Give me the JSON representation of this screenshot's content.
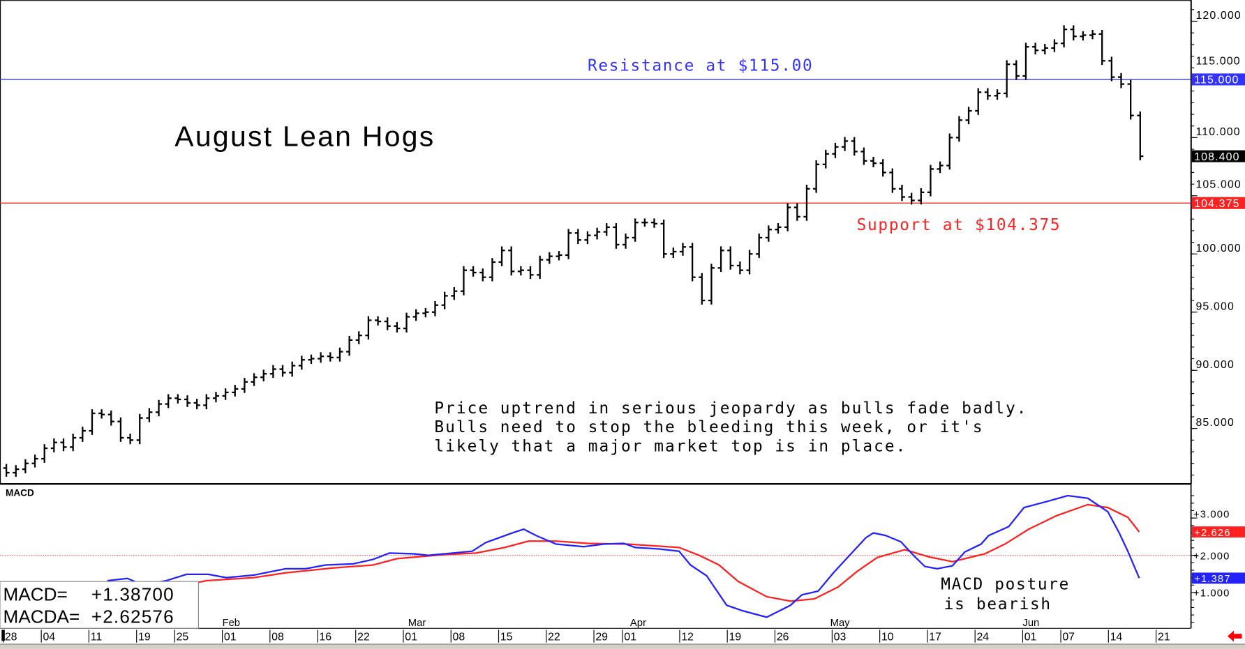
{
  "chart_data": {
    "type": "bar",
    "title": "August Lean Hogs",
    "price_axis": {
      "ylim": [
        80.5,
        121.5
      ],
      "ticks": [
        "120.000",
        "115.000",
        "110.000",
        "105.000",
        "100.000",
        "95.000",
        "90.000",
        "85.000"
      ],
      "tick_values": [
        120,
        115,
        110,
        105,
        100,
        95,
        90,
        85
      ]
    },
    "closes": [
      81.2,
      81.5,
      82.0,
      82.4,
      83.3,
      83.8,
      83.4,
      84.2,
      84.8,
      86.3,
      86.2,
      85.6,
      84.2,
      84.0,
      85.9,
      86.4,
      87.1,
      87.6,
      87.5,
      87.2,
      87.0,
      87.6,
      87.8,
      88.1,
      88.4,
      89.0,
      89.4,
      89.7,
      90.1,
      89.8,
      90.4,
      90.9,
      91.0,
      91.2,
      91.1,
      91.6,
      92.6,
      93.0,
      94.3,
      94.2,
      93.8,
      93.6,
      94.6,
      94.9,
      95.0,
      95.6,
      96.4,
      96.8,
      98.6,
      98.4,
      98.0,
      99.3,
      100.3,
      98.5,
      98.6,
      98.2,
      99.5,
      99.8,
      99.9,
      101.8,
      101.2,
      101.6,
      101.9,
      102.3,
      100.8,
      101.4,
      102.7,
      102.7,
      102.6,
      100.0,
      100.2,
      100.6,
      98.0,
      96.0,
      98.8,
      100.3,
      99.0,
      98.6,
      100.0,
      101.4,
      102.1,
      102.3,
      104.0,
      103.2,
      105.6,
      107.7,
      108.6,
      109.2,
      109.7,
      108.8,
      108.0,
      107.8,
      107.0,
      105.6,
      104.9,
      104.6,
      105.3,
      107.3,
      107.6,
      110.0,
      111.5,
      112.3,
      113.9,
      113.6,
      113.8,
      116.3,
      115.3,
      117.8,
      117.5,
      117.7,
      118.1,
      119.3,
      118.7,
      118.8,
      118.9,
      116.6,
      115.2,
      114.6,
      111.9,
      108.4
    ],
    "resistance": {
      "value": 115.0,
      "label": "Resistance at $115.00",
      "color": "#3333ff"
    },
    "support": {
      "value": 104.375,
      "label": "Support at $104.375",
      "color": "#ff2020"
    },
    "last_price": {
      "value": 108.4,
      "label": "108.400"
    },
    "resistance_tag": "115.000",
    "support_tag": "104.375",
    "annotation": [
      "Price uptrend in serious jeopardy as bulls fade badly.",
      "Bulls need to stop the bleeding this week, or it's",
      "likely that a major market top is in place."
    ],
    "macd": {
      "title": "MACD",
      "ylim": [
        0.0,
        3.9
      ],
      "ticks": [
        "+3.000",
        "+2.000",
        "+1.000"
      ],
      "tick_values": [
        3,
        2,
        1
      ],
      "zero_ref": 2.0,
      "macd_tag": "+1.387",
      "macda_tag": "+2.626",
      "readout": {
        "macd_label": "MACD=",
        "macd_value": "+1.38700",
        "macda_label": "MACDA=",
        "macda_value": "+2.62576"
      },
      "annotation": [
        "MACD posture",
        "is bearish"
      ],
      "macd_color": "#2222ff",
      "macda_color": "#ff2020",
      "macd_series": [
        [
          10.6,
          1.32
        ],
        [
          12.7,
          1.38
        ],
        [
          14.3,
          1.21
        ],
        [
          16.8,
          1.32
        ],
        [
          18.9,
          1.49
        ],
        [
          21.2,
          1.49
        ],
        [
          23.1,
          1.4
        ],
        [
          26,
          1.47
        ],
        [
          29.3,
          1.64
        ],
        [
          31.4,
          1.64
        ],
        [
          33.5,
          1.74
        ],
        [
          36.4,
          1.77
        ],
        [
          38.5,
          1.89
        ],
        [
          40.2,
          2.06
        ],
        [
          42.7,
          2.04
        ],
        [
          44.3,
          2.0
        ],
        [
          46,
          2.04
        ],
        [
          48.9,
          2.11
        ],
        [
          50.3,
          2.34
        ],
        [
          53.1,
          2.6
        ],
        [
          54.3,
          2.7
        ],
        [
          55.6,
          2.53
        ],
        [
          57.7,
          2.3
        ],
        [
          60.6,
          2.23
        ],
        [
          62.7,
          2.3
        ],
        [
          64.8,
          2.32
        ],
        [
          66,
          2.21
        ],
        [
          68.5,
          2.17
        ],
        [
          70.6,
          2.11
        ],
        [
          71.8,
          1.74
        ],
        [
          73.5,
          1.45
        ],
        [
          75.6,
          0.66
        ],
        [
          77.3,
          0.51
        ],
        [
          79.8,
          0.34
        ],
        [
          82.3,
          0.66
        ],
        [
          83.5,
          0.94
        ],
        [
          85.2,
          1.04
        ],
        [
          86.8,
          1.53
        ],
        [
          88.5,
          2.0
        ],
        [
          90.2,
          2.47
        ],
        [
          91,
          2.6
        ],
        [
          92.3,
          2.53
        ],
        [
          93.9,
          2.36
        ],
        [
          95.2,
          2.0
        ],
        [
          96.4,
          1.7
        ],
        [
          97.7,
          1.64
        ],
        [
          99.3,
          1.72
        ],
        [
          100.6,
          2.09
        ],
        [
          102.3,
          2.3
        ],
        [
          103.1,
          2.53
        ],
        [
          105.2,
          2.77
        ],
        [
          106.8,
          3.28
        ],
        [
          109.3,
          3.45
        ],
        [
          111.4,
          3.6
        ],
        [
          113.5,
          3.53
        ],
        [
          115.6,
          3.17
        ],
        [
          116.8,
          2.6
        ],
        [
          117.7,
          2.11
        ],
        [
          118.9,
          1.387
        ]
      ],
      "macda_series": [
        [
          17.7,
          1.15
        ],
        [
          21,
          1.32
        ],
        [
          26,
          1.4
        ],
        [
          29.3,
          1.53
        ],
        [
          34.3,
          1.66
        ],
        [
          38.5,
          1.74
        ],
        [
          41,
          1.91
        ],
        [
          46,
          2.02
        ],
        [
          49.3,
          2.06
        ],
        [
          52.3,
          2.21
        ],
        [
          54.8,
          2.38
        ],
        [
          57.7,
          2.38
        ],
        [
          61,
          2.32
        ],
        [
          65.2,
          2.3
        ],
        [
          70.6,
          2.21
        ],
        [
          72.7,
          2.0
        ],
        [
          74.8,
          1.74
        ],
        [
          76.8,
          1.3
        ],
        [
          79.8,
          0.89
        ],
        [
          82.3,
          0.77
        ],
        [
          84.8,
          0.83
        ],
        [
          87.3,
          1.15
        ],
        [
          89.3,
          1.57
        ],
        [
          91.4,
          1.94
        ],
        [
          94.3,
          2.15
        ],
        [
          96.8,
          1.96
        ],
        [
          99.3,
          1.83
        ],
        [
          102.7,
          2.04
        ],
        [
          104.8,
          2.3
        ],
        [
          107.3,
          2.7
        ],
        [
          110.2,
          3.06
        ],
        [
          113.5,
          3.36
        ],
        [
          115.6,
          3.28
        ],
        [
          117.7,
          3.02
        ],
        [
          118.9,
          2.626
        ]
      ]
    },
    "x_axis": {
      "months": [
        {
          "label": "Feb",
          "index": 23
        },
        {
          "label": "Mar",
          "index": 42.5
        },
        {
          "label": "Apr",
          "index": 65.8
        },
        {
          "label": "May",
          "index": 86.8
        },
        {
          "label": "Jun",
          "index": 107
        }
      ],
      "days": [
        {
          "label": "28",
          "index": 0
        },
        {
          "label": "04",
          "index": 4
        },
        {
          "label": "11",
          "index": 9
        },
        {
          "label": "19",
          "index": 14
        },
        {
          "label": "25",
          "index": 18
        },
        {
          "label": "01",
          "index": 23
        },
        {
          "label": "08",
          "index": 28
        },
        {
          "label": "16",
          "index": 33
        },
        {
          "label": "22",
          "index": 37
        },
        {
          "label": "01",
          "index": 42
        },
        {
          "label": "08",
          "index": 47
        },
        {
          "label": "15",
          "index": 52
        },
        {
          "label": "22",
          "index": 57
        },
        {
          "label": "29",
          "index": 62
        },
        {
          "label": "01",
          "index": 65
        },
        {
          "label": "12",
          "index": 71
        },
        {
          "label": "19",
          "index": 76
        },
        {
          "label": "26",
          "index": 81
        },
        {
          "label": "03",
          "index": 87
        },
        {
          "label": "10",
          "index": 92
        },
        {
          "label": "17",
          "index": 97
        },
        {
          "label": "24",
          "index": 102
        },
        {
          "label": "01",
          "index": 107
        },
        {
          "label": "07",
          "index": 111
        },
        {
          "label": "14",
          "index": 116
        },
        {
          "label": "21",
          "index": 121
        }
      ]
    }
  }
}
